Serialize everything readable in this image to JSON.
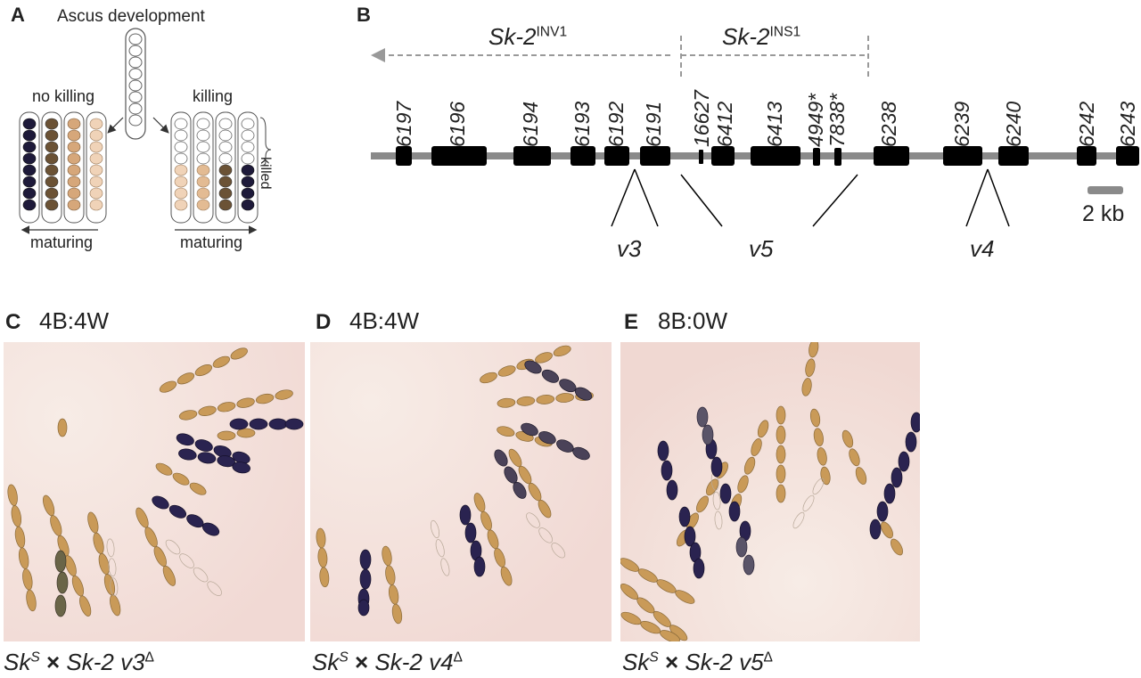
{
  "panels": {
    "A": {
      "letter": "A",
      "title": "Ascus development",
      "no_killing": "no killing",
      "killing": "killing",
      "killed": "killed",
      "maturing_left": "maturing",
      "maturing_right": "maturing"
    },
    "B": {
      "letter": "B",
      "inv_base": "Sk-2",
      "inv_sup": "INV1",
      "ins_base": "Sk-2",
      "ins_sup": "INS1",
      "genes": [
        "6197",
        "6196",
        "6194",
        "6193",
        "6192",
        "6191",
        "16627",
        "6412",
        "6413",
        "4949*",
        "7838*",
        "6238",
        "6239",
        "6240",
        "6242",
        "6243"
      ],
      "deletions": [
        "v3",
        "v5",
        "v4"
      ],
      "scale_label": "2 kb"
    },
    "C": {
      "letter": "C",
      "ratio": "4B:4W",
      "cap_a": "Sk",
      "cap_sup": "S",
      "cap_b": " × ",
      "cap_c": "Sk-2 v3",
      "cap_delta": "Δ"
    },
    "D": {
      "letter": "D",
      "ratio": "4B:4W",
      "cap_a": "Sk",
      "cap_sup": "S",
      "cap_b": " × ",
      "cap_c": "Sk-2 v4",
      "cap_delta": "Δ"
    },
    "E": {
      "letter": "E",
      "ratio": "8B:0W",
      "cap_a": "Sk",
      "cap_sup": "S",
      "cap_b": " × ",
      "cap_c": "Sk-2 v5",
      "cap_delta": "Δ"
    }
  },
  "colors": {
    "dark_spore": "#1e1a3a",
    "brown_spore": "#6b5235",
    "tan_spore": "#d6a77a",
    "light_spore": "#f0d3b8",
    "gene_box": "#000000",
    "chromosome": "#8a8a8a",
    "photo_bg": "#f4e4de",
    "aborted_spore": "#c69a5a",
    "viable_spore": "#2a2350"
  }
}
